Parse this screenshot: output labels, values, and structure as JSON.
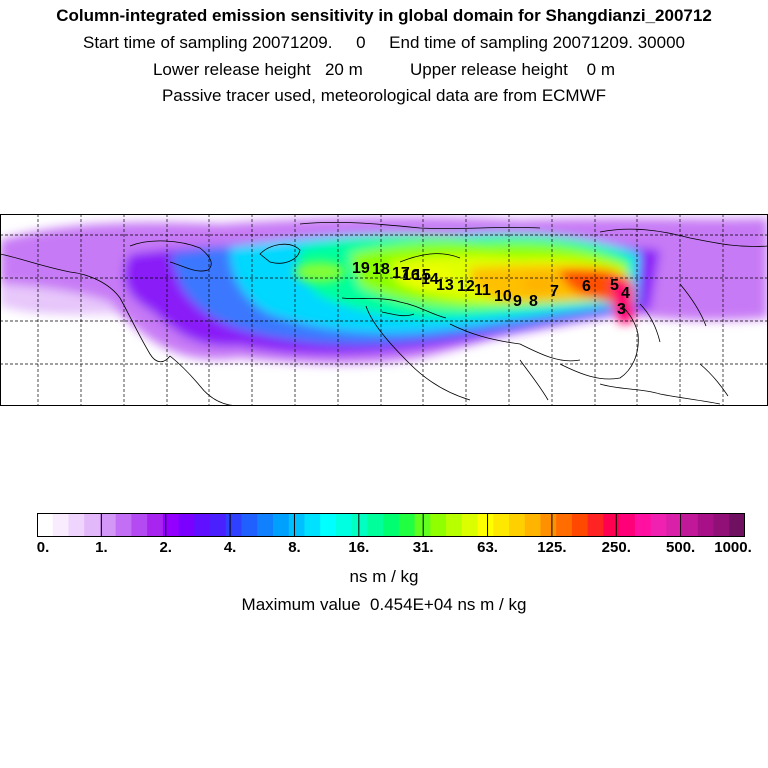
{
  "header": {
    "title": "Column-integrated emission sensitivity in global domain for Shangdianzi_200712",
    "sampling": "Start time of sampling 20071209.     0     End time of sampling 20071209. 30000",
    "release": "Lower release height   20 m          Upper release height    0 m",
    "tracer": "Passive tracer used, meteorological data are from ECMWF"
  },
  "colorbar": {
    "labels": [
      "0.",
      "1.",
      "2.",
      "4.",
      "8.",
      "16.",
      "31.",
      "63.",
      "125.",
      "250.",
      "500.",
      "1000."
    ],
    "colors": [
      "#ffffff",
      "#f8ecfe",
      "#efd5fd",
      "#e3b8fb",
      "#d397f8",
      "#c26ff5",
      "#b44af2",
      "#a824ef",
      "#9300ff",
      "#7a00ff",
      "#6010ff",
      "#4a20ff",
      "#3040ff",
      "#2060ff",
      "#1080ff",
      "#00a0ff",
      "#00c0ff",
      "#00e0ff",
      "#00ffff",
      "#00ffe0",
      "#00ffc0",
      "#00ff9a",
      "#00ff70",
      "#20ff40",
      "#60ff20",
      "#90ff00",
      "#b8ff00",
      "#dcff00",
      "#ffff00",
      "#ffe800",
      "#ffd000",
      "#ffb400",
      "#ff9000",
      "#ff6c00",
      "#ff4800",
      "#ff2424",
      "#ff0050",
      "#ff0078",
      "#ff10a0",
      "#f020b0",
      "#d820a8",
      "#c01898",
      "#a81088",
      "#901078",
      "#701060"
    ],
    "unit": "ns m / kg",
    "max_label": "Maximum value  0.454E+04 ns m / kg"
  },
  "map": {
    "receptor_labels": [
      "19",
      "18",
      "17",
      "16",
      "15",
      "14",
      "13",
      "12",
      "11",
      "10",
      "9",
      "8",
      "7",
      "6",
      "5",
      "4",
      "3"
    ]
  }
}
